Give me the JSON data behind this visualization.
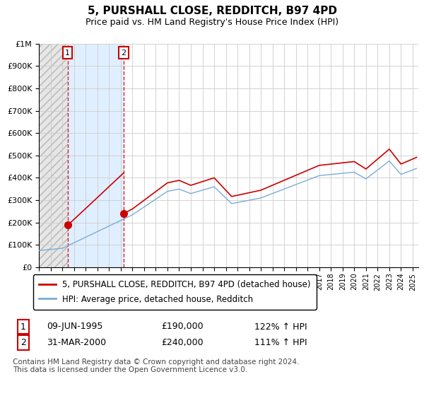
{
  "title": "5, PURSHALL CLOSE, REDDITCH, B97 4PD",
  "subtitle": "Price paid vs. HM Land Registry's House Price Index (HPI)",
  "legend_line1": "5, PURSHALL CLOSE, REDDITCH, B97 4PD (detached house)",
  "legend_line2": "HPI: Average price, detached house, Redditch",
  "purchase1": {
    "date": "09-JUN-1995",
    "price": 190000,
    "label": "1",
    "year": 1995.44
  },
  "purchase2": {
    "date": "31-MAR-2000",
    "price": 240000,
    "label": "2",
    "year": 2000.25
  },
  "purchase1_pct": "122% ↑ HPI",
  "purchase2_pct": "111% ↑ HPI",
  "footer": "Contains HM Land Registry data © Crown copyright and database right 2024.\nThis data is licensed under the Open Government Licence v3.0.",
  "hpi_color": "#7aadd4",
  "property_color": "#cc0000",
  "marker_color": "#cc0000",
  "grid_color": "#cccccc",
  "ylim": [
    0,
    1000000
  ],
  "xlim_start": 1993.0,
  "xlim_end": 2025.5
}
